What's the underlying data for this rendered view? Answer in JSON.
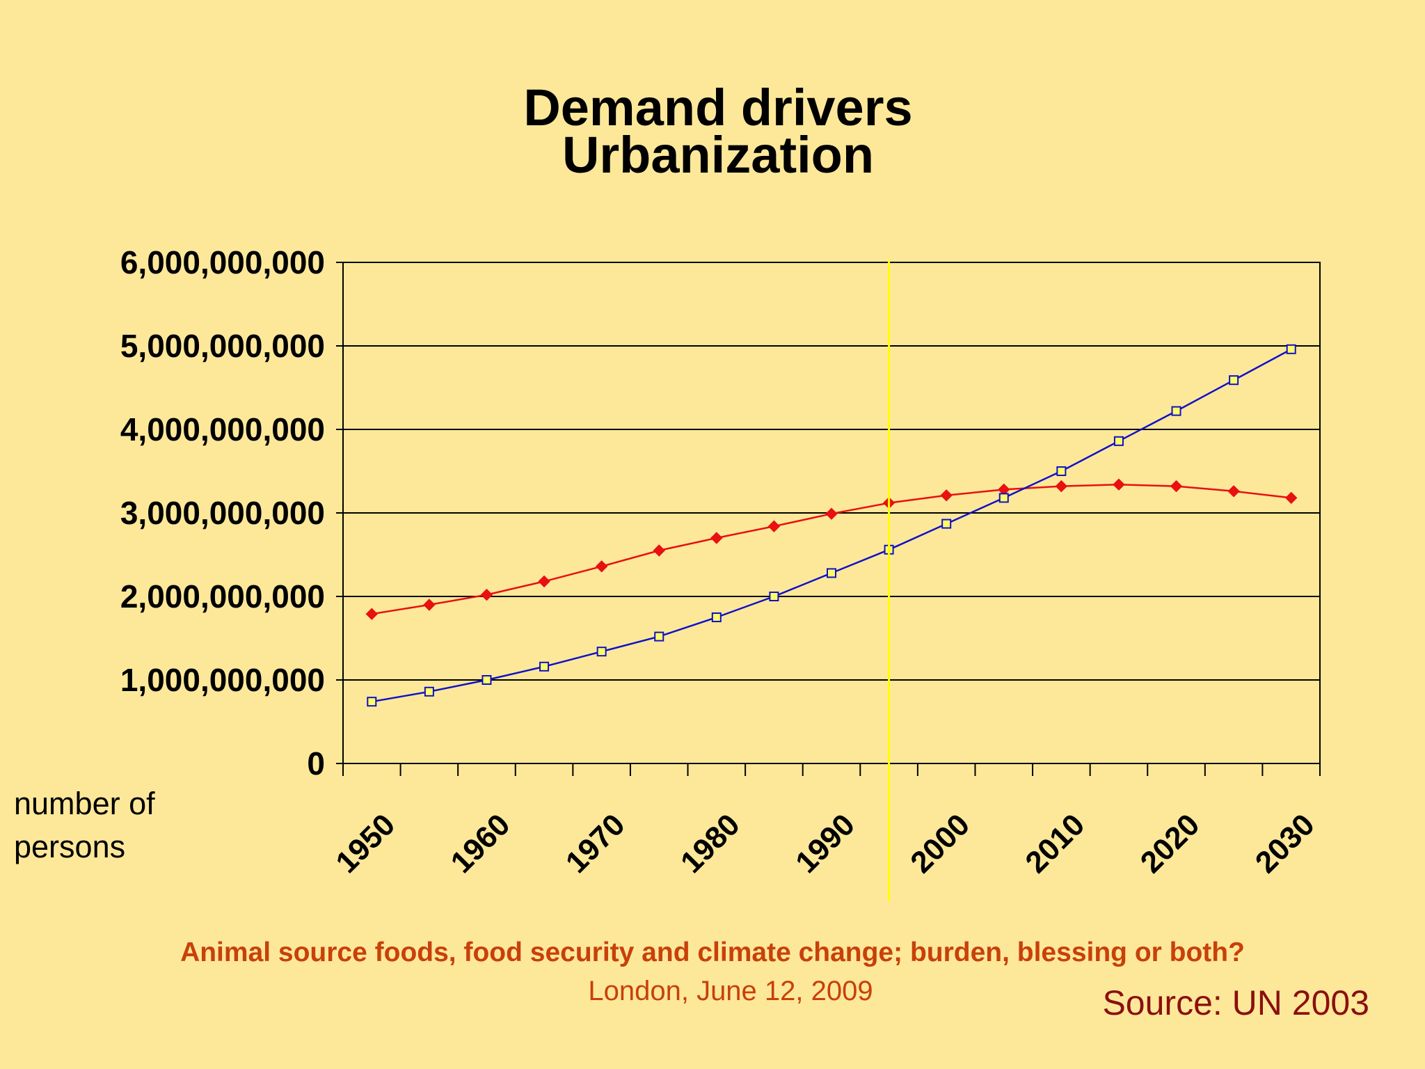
{
  "slide": {
    "title_line1": "Demand drivers",
    "title_line2": "Urbanization",
    "footer_title": "Animal source foods, food security and climate change; burden, blessing or both?",
    "footer_subtitle": "London, June 12, 2009",
    "source": "Source: UN 2003"
  },
  "chart_data": {
    "type": "line",
    "title": "",
    "ylabel": "number of\npersons",
    "xlabel": "",
    "ylim": [
      0,
      6000000000
    ],
    "yticks": [
      "0",
      "1,000,000,000",
      "2,000,000,000",
      "3,000,000,000",
      "4,000,000,000",
      "5,000,000,000",
      "6,000,000,000"
    ],
    "ytick_values": [
      0,
      1000000000,
      2000000000,
      3000000000,
      4000000000,
      5000000000,
      6000000000
    ],
    "xlim": [
      1950,
      2035
    ],
    "xticks": [
      "1950",
      "1960",
      "1970",
      "1980",
      "1990",
      "2000",
      "2010",
      "2020",
      "2030"
    ],
    "xtick_values": [
      1950,
      1960,
      1970,
      1980,
      1990,
      2000,
      2010,
      2020,
      2030
    ],
    "grid": "horizontal",
    "vertical_marker_year": 1997.5,
    "x": [
      1952.5,
      1957.5,
      1962.5,
      1967.5,
      1972.5,
      1977.5,
      1982.5,
      1987.5,
      1992.5,
      1997.5,
      2002.5,
      2007.5,
      2012.5,
      2017.5,
      2022.5,
      2027.5,
      2032.5
    ],
    "series": [
      {
        "color": "#e81010",
        "marker": "diamond",
        "values": [
          1790000000,
          1900000000,
          2020000000,
          2180000000,
          2360000000,
          2550000000,
          2700000000,
          2840000000,
          2990000000,
          3120000000,
          3210000000,
          3280000000,
          3320000000,
          3340000000,
          3320000000,
          3260000000,
          3180000000
        ]
      },
      {
        "color": "#1010c8",
        "marker": "square",
        "values": [
          740000000,
          860000000,
          1000000000,
          1160000000,
          1340000000,
          1520000000,
          1750000000,
          2000000000,
          2280000000,
          2560000000,
          2870000000,
          3180000000,
          3500000000,
          3860000000,
          4220000000,
          4590000000,
          4960000000
        ]
      }
    ]
  }
}
